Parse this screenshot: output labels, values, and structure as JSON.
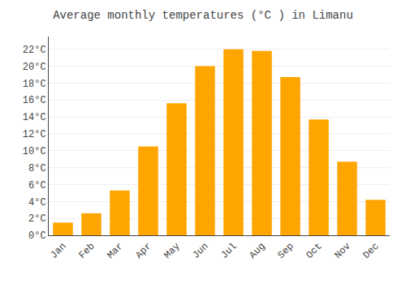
{
  "chart_data": {
    "type": "bar",
    "title": "Average monthly temperatures (°C ) in Limanu",
    "categories": [
      "Jan",
      "Feb",
      "Mar",
      "Apr",
      "May",
      "Jun",
      "Jul",
      "Aug",
      "Sep",
      "Oct",
      "Nov",
      "Dec"
    ],
    "values": [
      1.5,
      2.6,
      5.3,
      10.5,
      15.6,
      20.0,
      22.0,
      21.8,
      18.7,
      13.7,
      8.7,
      4.2
    ],
    "color": "#FFA500",
    "ylim": [
      0,
      23.5
    ],
    "yticks": [
      {
        "value": 0,
        "label": "0°C"
      },
      {
        "value": 2,
        "label": "2°C"
      },
      {
        "value": 4,
        "label": "4°C"
      },
      {
        "value": 6,
        "label": "6°C"
      },
      {
        "value": 8,
        "label": "8°C"
      },
      {
        "value": 10,
        "label": "10°C"
      },
      {
        "value": 12,
        "label": "12°C"
      },
      {
        "value": 14,
        "label": "14°C"
      },
      {
        "value": 16,
        "label": "16°C"
      },
      {
        "value": 18,
        "label": "18°C"
      },
      {
        "value": 20,
        "label": "20°C"
      },
      {
        "value": 22,
        "label": "22°C"
      }
    ],
    "grid": true
  }
}
